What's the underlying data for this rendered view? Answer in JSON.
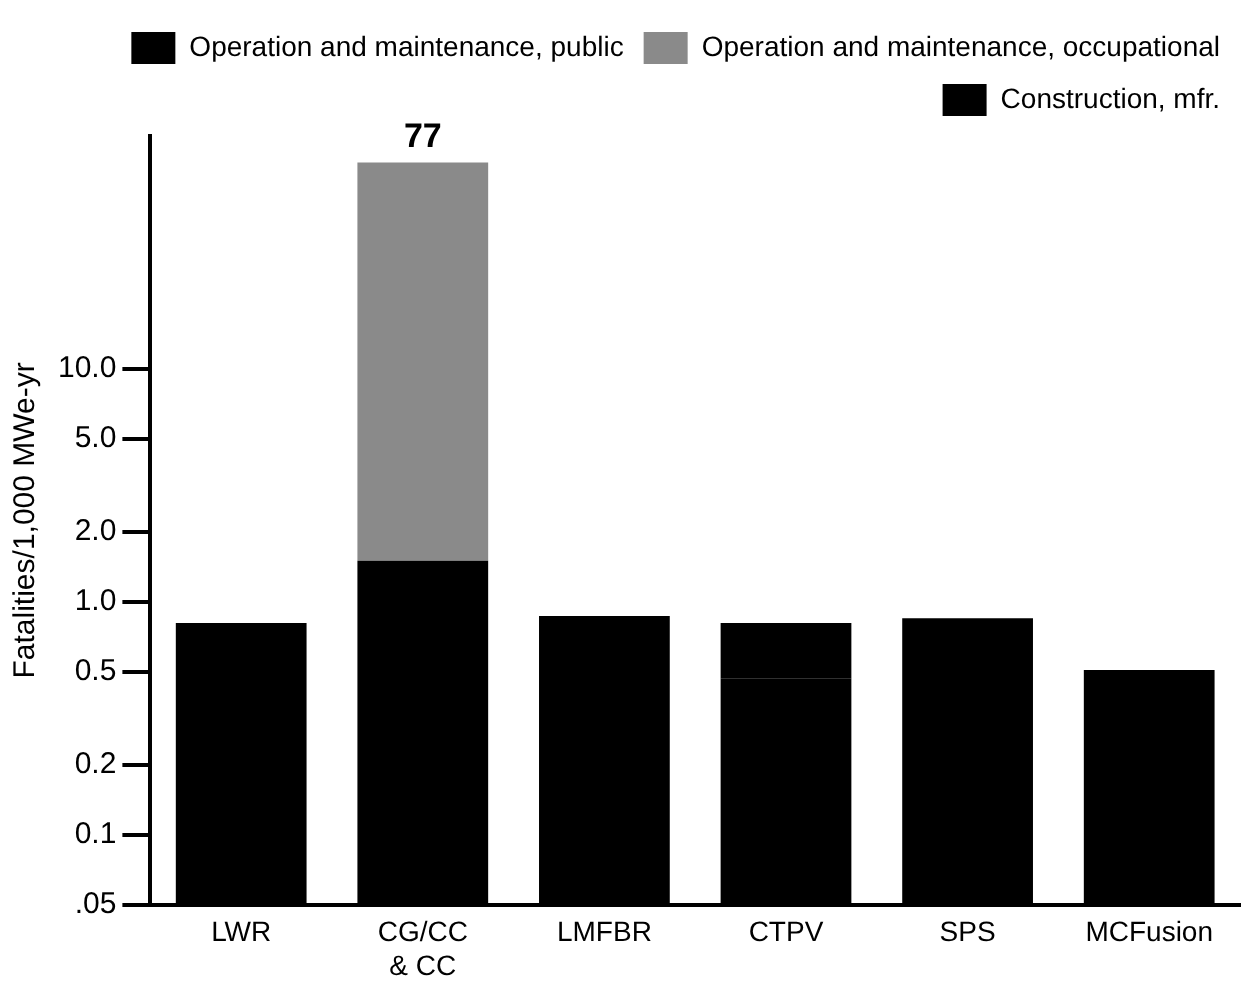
{
  "chart_data": {
    "type": "bar",
    "stacked": true,
    "log": "y",
    "ylabel": "Fatalities/1,000 MWe-yr",
    "categories": [
      "LWR",
      "CG/CC & CC",
      "LMFBR",
      "CTPV",
      "SPS",
      "MCFusion"
    ],
    "series": [
      {
        "name": "Construction, mfr.",
        "color": "#000000",
        "values": [
          0.25,
          1.5,
          0.29,
          0.47,
          0.35,
          0.25
        ]
      },
      {
        "name": "Operation and maintenance, occupational",
        "color": "#8a8a8a",
        "values": [
          null,
          75.5,
          null,
          null,
          null,
          null
        ]
      },
      {
        "name": "Operation and maintenance, public",
        "color": "#000000",
        "values": [
          0.56,
          null,
          0.58,
          0.34,
          0.5,
          0.26
        ]
      }
    ],
    "ylim": [
      0.05,
      100
    ],
    "yticks": [
      {
        "value": 0.05,
        "label": ".05"
      },
      0.1,
      0.2,
      0.5,
      {
        "value": 1,
        "label": "1.0"
      },
      {
        "value": 2,
        "label": "2.0"
      },
      {
        "value": 5,
        "label": "5.0"
      },
      {
        "value": 10,
        "label": "10.0"
      }
    ],
    "totals": [
      null,
      "77",
      null,
      null,
      null,
      null
    ],
    "grid": false,
    "legend": "top right"
  }
}
